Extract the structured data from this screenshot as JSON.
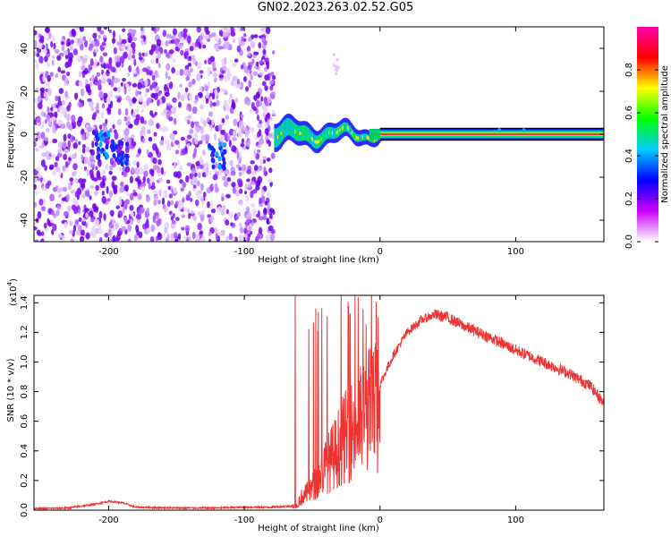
{
  "figure": {
    "title": "GN02.2023.263.02.52.G05"
  },
  "colors": {
    "snr_line": "#ee3333",
    "frame": "#000000"
  },
  "chart_data": [
    {
      "type": "heatmap",
      "xlabel": "Height of straight line (km)",
      "ylabel": "Frequency (Hz)",
      "xlim": [
        -255,
        165
      ],
      "ylim": [
        -50,
        50
      ],
      "xticks": [
        -200,
        -100,
        0,
        100
      ],
      "yticks": [
        -40,
        -20,
        0,
        20,
        40
      ],
      "colorbar": {
        "label": "Normalized spectral amplitude",
        "range": [
          0.0,
          1.0
        ],
        "ticks": [
          "0.0",
          "0.2",
          "0.4",
          "0.6",
          "0.8"
        ],
        "colors": [
          "#ffffff",
          "#cc00ff",
          "#0000ff",
          "#00ccff",
          "#00ff00",
          "#ffff00",
          "#ff0000",
          "#ff00aa"
        ]
      },
      "regions": [
        {
          "description_x": [
            -255,
            -78
          ],
          "content": "scattered noise"
        },
        {
          "description_x": [
            -78,
            0
          ],
          "content": "wandering signal near 0 Hz"
        },
        {
          "description_x": [
            0,
            165
          ],
          "content": "steady tone at 0 Hz"
        }
      ]
    },
    {
      "type": "line",
      "xlabel": "Height of straight line (km)",
      "ylabel": "SNR (10 * v/v)",
      "y_multiplier_label": "(x10",
      "y_multiplier_exp": "4",
      "y_multiplier_close": ")",
      "xlim": [
        -255,
        165
      ],
      "ylim": [
        0,
        1.45
      ],
      "xticks": [
        -200,
        -100,
        0,
        100
      ],
      "yticks": [
        "0.0",
        "0.2",
        "0.4",
        "0.6",
        "0.8",
        "1.0",
        "1.2",
        "1.4"
      ],
      "series": [
        {
          "x": [
            -255,
            -230,
            -210,
            -200,
            -190,
            -180,
            -150,
            -120,
            -100,
            -80,
            -62,
            -58,
            -52,
            -45,
            -40,
            -33,
            -28,
            -22,
            -15,
            -8,
            -2,
            0,
            5,
            10,
            20,
            30,
            40,
            50,
            60,
            80,
            100,
            120,
            140,
            155,
            165
          ],
          "y": [
            0.01,
            0.015,
            0.04,
            0.06,
            0.05,
            0.02,
            0.015,
            0.015,
            0.02,
            0.02,
            0.03,
            0.1,
            0.15,
            0.25,
            0.35,
            0.45,
            0.55,
            0.62,
            0.7,
            0.8,
            0.82,
            0.85,
            0.95,
            1.05,
            1.2,
            1.28,
            1.32,
            1.3,
            1.25,
            1.17,
            1.08,
            1.0,
            0.92,
            0.84,
            0.72
          ]
        }
      ]
    }
  ]
}
